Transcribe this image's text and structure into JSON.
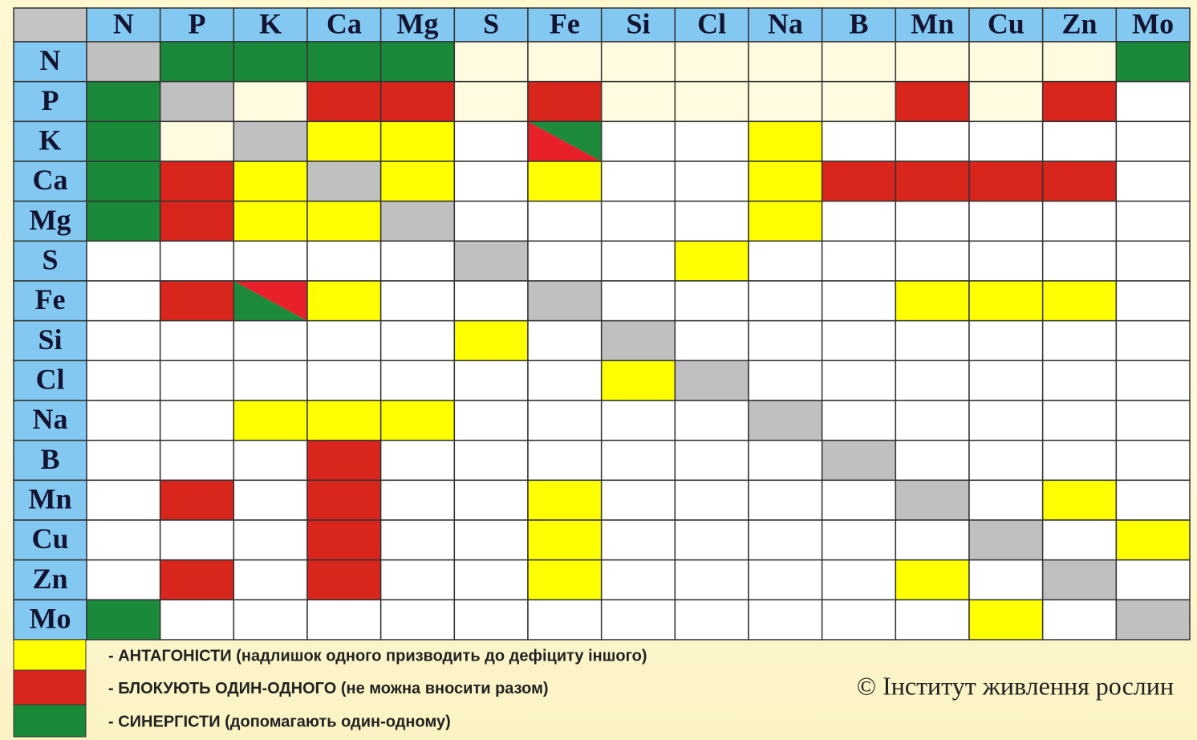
{
  "header": {
    "corner_color": "#c4c4c4",
    "header_color": "#82c8f0",
    "columns": [
      "N",
      "P",
      "K",
      "Ca",
      "Mg",
      "S",
      "Fe",
      "Si",
      "Cl",
      "Na",
      "B",
      "Mn",
      "Cu",
      "Zn",
      "Mo"
    ]
  },
  "rows": [
    {
      "label": "N",
      "cells": [
        "#c0c0c0",
        "#1a8a3a",
        "#1a8a3a",
        "#1a8a3a",
        "#1a8a3a",
        "#fffbe0",
        "#fffbe0",
        "#fffbe0",
        "#fffbe0",
        "#fffbe0",
        "#fffbe0",
        "#fffbe0",
        "#fffbe0",
        "#fffbe0",
        "#1a8a3a"
      ]
    },
    {
      "label": "P",
      "cells": [
        "#1a8a3a",
        "#c0c0c0",
        "#fffbe0",
        "#d9261c",
        "#d9261c",
        "#fffbe0",
        "#d9261c",
        "#fffbe0",
        "#fffbe0",
        "#fffbe0",
        "#fffbe0",
        "#d9261c",
        "#fffbe0",
        "#d9261c",
        "#ffffff"
      ]
    },
    {
      "label": "K",
      "cells": [
        "#1a8a3a",
        "#fffbe0",
        "#c0c0c0",
        "#ffff00",
        "#ffff00",
        "#ffffff",
        [
          "#e8202a",
          "#1e8a3c"
        ],
        "#ffffff",
        "#ffffff",
        "#ffff00",
        "#ffffff",
        "#ffffff",
        "#ffffff",
        "#ffffff",
        "#ffffff"
      ]
    },
    {
      "label": "Ca",
      "cells": [
        "#1a8a3a",
        "#d9261c",
        "#ffff00",
        "#c0c0c0",
        "#ffff00",
        "#ffffff",
        "#ffff00",
        "#ffffff",
        "#ffffff",
        "#ffff00",
        "#d9261c",
        "#d9261c",
        "#d9261c",
        "#d9261c",
        "#ffffff"
      ]
    },
    {
      "label": "Mg",
      "cells": [
        "#1a8a3a",
        "#d9261c",
        "#ffff00",
        "#ffff00",
        "#c0c0c0",
        "#ffffff",
        "#ffffff",
        "#ffffff",
        "#ffffff",
        "#ffff00",
        "#ffffff",
        "#ffffff",
        "#ffffff",
        "#ffffff",
        "#ffffff"
      ]
    },
    {
      "label": "S",
      "cells": [
        "#ffffff",
        "#ffffff",
        "#ffffff",
        "#ffffff",
        "#ffffff",
        "#c0c0c0",
        "#ffffff",
        "#ffffff",
        "#ffff00",
        "#ffffff",
        "#ffffff",
        "#ffffff",
        "#ffffff",
        "#ffffff",
        "#ffffff"
      ]
    },
    {
      "label": "Fe",
      "cells": [
        "#ffffff",
        "#d9261c",
        [
          "#1e8a3c",
          "#e8202a"
        ],
        "#ffff00",
        "#ffffff",
        "#ffffff",
        "#c0c0c0",
        "#ffffff",
        "#ffffff",
        "#ffffff",
        "#ffffff",
        "#ffff00",
        "#ffff00",
        "#ffff00",
        "#ffffff"
      ]
    },
    {
      "label": "Si",
      "cells": [
        "#ffffff",
        "#ffffff",
        "#ffffff",
        "#ffffff",
        "#ffffff",
        "#ffff00",
        "#ffffff",
        "#c0c0c0",
        "#ffffff",
        "#ffffff",
        "#ffffff",
        "#ffffff",
        "#ffffff",
        "#ffffff",
        "#ffffff"
      ]
    },
    {
      "label": "Cl",
      "cells": [
        "#ffffff",
        "#ffffff",
        "#ffffff",
        "#ffffff",
        "#ffffff",
        "#ffffff",
        "#ffffff",
        "#ffff00",
        "#c0c0c0",
        "#ffffff",
        "#ffffff",
        "#ffffff",
        "#ffffff",
        "#ffffff",
        "#ffffff"
      ]
    },
    {
      "label": "Na",
      "cells": [
        "#ffffff",
        "#ffffff",
        "#ffff00",
        "#ffff00",
        "#ffff00",
        "#ffffff",
        "#ffffff",
        "#ffffff",
        "#ffffff",
        "#c0c0c0",
        "#ffffff",
        "#ffffff",
        "#ffffff",
        "#ffffff",
        "#ffffff"
      ]
    },
    {
      "label": "B",
      "cells": [
        "#ffffff",
        "#ffffff",
        "#ffffff",
        "#d9261c",
        "#ffffff",
        "#ffffff",
        "#ffffff",
        "#ffffff",
        "#ffffff",
        "#ffffff",
        "#c0c0c0",
        "#ffffff",
        "#ffffff",
        "#ffffff",
        "#ffffff"
      ]
    },
    {
      "label": "Mn",
      "cells": [
        "#ffffff",
        "#d9261c",
        "#ffffff",
        "#d9261c",
        "#ffffff",
        "#ffffff",
        "#ffff00",
        "#ffffff",
        "#ffffff",
        "#ffffff",
        "#ffffff",
        "#c0c0c0",
        "#ffffff",
        "#ffff00",
        "#ffffff"
      ]
    },
    {
      "label": "Cu",
      "cells": [
        "#ffffff",
        "#ffffff",
        "#ffffff",
        "#d9261c",
        "#ffffff",
        "#ffffff",
        "#ffff00",
        "#ffffff",
        "#ffffff",
        "#ffffff",
        "#ffffff",
        "#ffffff",
        "#c0c0c0",
        "#ffffff",
        "#ffff00"
      ]
    },
    {
      "label": "Zn",
      "cells": [
        "#ffffff",
        "#d9261c",
        "#ffffff",
        "#d9261c",
        "#ffffff",
        "#ffffff",
        "#ffff00",
        "#ffffff",
        "#ffffff",
        "#ffffff",
        "#ffffff",
        "#ffff00",
        "#ffffff",
        "#c0c0c0",
        "#ffffff"
      ]
    },
    {
      "label": "Mo",
      "cells": [
        "#1a8a3a",
        "#ffffff",
        "#ffffff",
        "#ffffff",
        "#ffffff",
        "#ffffff",
        "#ffffff",
        "#ffffff",
        "#ffffff",
        "#ffffff",
        "#ffffff",
        "#ffffff",
        "#ffff00",
        "#ffffff",
        "#c0c0c0"
      ]
    }
  ],
  "legend": [
    {
      "color": "#ffff00",
      "text": "- АНТАГОНІСТИ (надлишок одного призводить до дефіциту іншого)"
    },
    {
      "color": "#d9261c",
      "text": "- БЛОКУЮТЬ ОДИН-ОДНОГО (не можна вносити разом)"
    },
    {
      "color": "#1a8a3a",
      "text": "- СИНЕРГІСТИ (допомагають один-одному)"
    }
  ],
  "copyright": "© Інститут живлення рослин"
}
